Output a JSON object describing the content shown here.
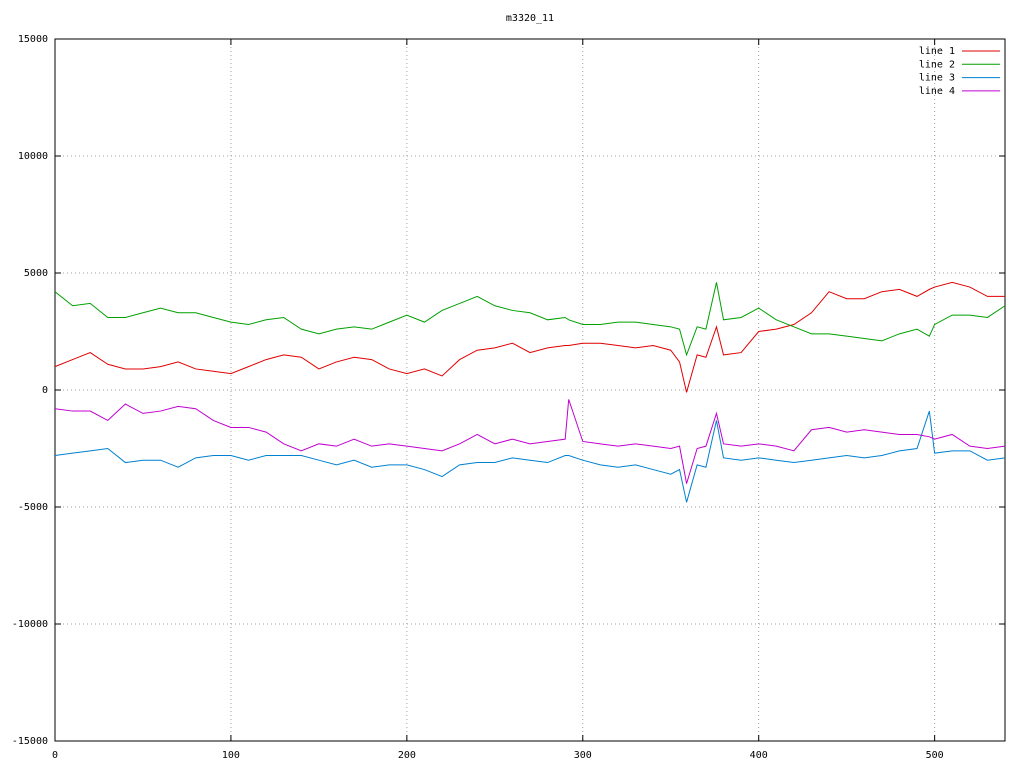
{
  "chart_data": {
    "type": "line",
    "title": "m3320_11",
    "x": [
      0,
      10,
      20,
      30,
      40,
      50,
      60,
      70,
      80,
      90,
      100,
      110,
      120,
      130,
      140,
      150,
      160,
      170,
      180,
      190,
      200,
      210,
      220,
      230,
      240,
      250,
      260,
      270,
      280,
      290,
      292,
      300,
      310,
      320,
      330,
      340,
      350,
      355,
      359,
      365,
      370,
      376,
      380,
      390,
      400,
      410,
      420,
      430,
      440,
      450,
      460,
      470,
      480,
      490,
      497,
      500,
      510,
      520,
      530,
      540
    ],
    "series": [
      {
        "name": "line 1",
        "color": "#e00000",
        "values": [
          1000,
          1300,
          1600,
          1100,
          900,
          900,
          1000,
          1200,
          900,
          800,
          700,
          1000,
          1300,
          1500,
          1400,
          900,
          1200,
          1400,
          1300,
          900,
          700,
          900,
          600,
          1300,
          1700,
          1800,
          2000,
          1600,
          1800,
          1900,
          1900,
          2000,
          2000,
          1900,
          1800,
          1900,
          1700,
          1200,
          -100,
          1500,
          1400,
          2700,
          1500,
          1600,
          2500,
          2600,
          2800,
          3300,
          4200,
          3900,
          3900,
          4200,
          4300,
          4000,
          4300,
          4400,
          4600,
          4400,
          4000,
          4000
        ]
      },
      {
        "name": "line 2",
        "color": "#00a000",
        "values": [
          4200,
          3600,
          3700,
          3100,
          3100,
          3300,
          3500,
          3300,
          3300,
          3100,
          2900,
          2800,
          3000,
          3100,
          2600,
          2400,
          2600,
          2700,
          2600,
          2900,
          3200,
          2900,
          3400,
          3700,
          4000,
          3600,
          3400,
          3300,
          3000,
          3100,
          3000,
          2800,
          2800,
          2900,
          2900,
          2800,
          2700,
          2600,
          1500,
          2700,
          2600,
          4600,
          3000,
          3100,
          3500,
          3000,
          2700,
          2400,
          2400,
          2300,
          2200,
          2100,
          2400,
          2600,
          2300,
          2800,
          3200,
          3200,
          3100,
          3600
        ]
      },
      {
        "name": "line 3",
        "color": "#0080d0",
        "values": [
          -2800,
          -2700,
          -2600,
          -2500,
          -3100,
          -3000,
          -3000,
          -3300,
          -2900,
          -2800,
          -2800,
          -3000,
          -2800,
          -2800,
          -2800,
          -3000,
          -3200,
          -3000,
          -3300,
          -3200,
          -3200,
          -3400,
          -3700,
          -3200,
          -3100,
          -3100,
          -2900,
          -3000,
          -3100,
          -2800,
          -2800,
          -3000,
          -3200,
          -3300,
          -3200,
          -3400,
          -3600,
          -3400,
          -4800,
          -3200,
          -3300,
          -1300,
          -2900,
          -3000,
          -2900,
          -3000,
          -3100,
          -3000,
          -2900,
          -2800,
          -2900,
          -2800,
          -2600,
          -2500,
          -900,
          -2700,
          -2600,
          -2600,
          -3000,
          -2900
        ]
      },
      {
        "name": "line 4",
        "color": "#c000d0",
        "values": [
          -800,
          -900,
          -900,
          -1300,
          -600,
          -1000,
          -900,
          -700,
          -800,
          -1300,
          -1600,
          -1600,
          -1800,
          -2300,
          -2600,
          -2300,
          -2400,
          -2100,
          -2400,
          -2300,
          -2400,
          -2500,
          -2600,
          -2300,
          -1900,
          -2300,
          -2100,
          -2300,
          -2200,
          -2100,
          -400,
          -2200,
          -2300,
          -2400,
          -2300,
          -2400,
          -2500,
          -2400,
          -4000,
          -2500,
          -2400,
          -1000,
          -2300,
          -2400,
          -2300,
          -2400,
          -2600,
          -1700,
          -1600,
          -1800,
          -1700,
          -1800,
          -1900,
          -1900,
          -2000,
          -2100,
          -1900,
          -2400,
          -2500,
          -2400
        ]
      }
    ],
    "xlim": [
      0,
      540
    ],
    "xticks": [
      0,
      100,
      200,
      300,
      400,
      500
    ],
    "ylim": [
      -15000,
      15000
    ],
    "yticks": [
      -15000,
      -10000,
      -5000,
      0,
      5000,
      10000,
      15000
    ],
    "grid": true,
    "legend": "top-right"
  }
}
